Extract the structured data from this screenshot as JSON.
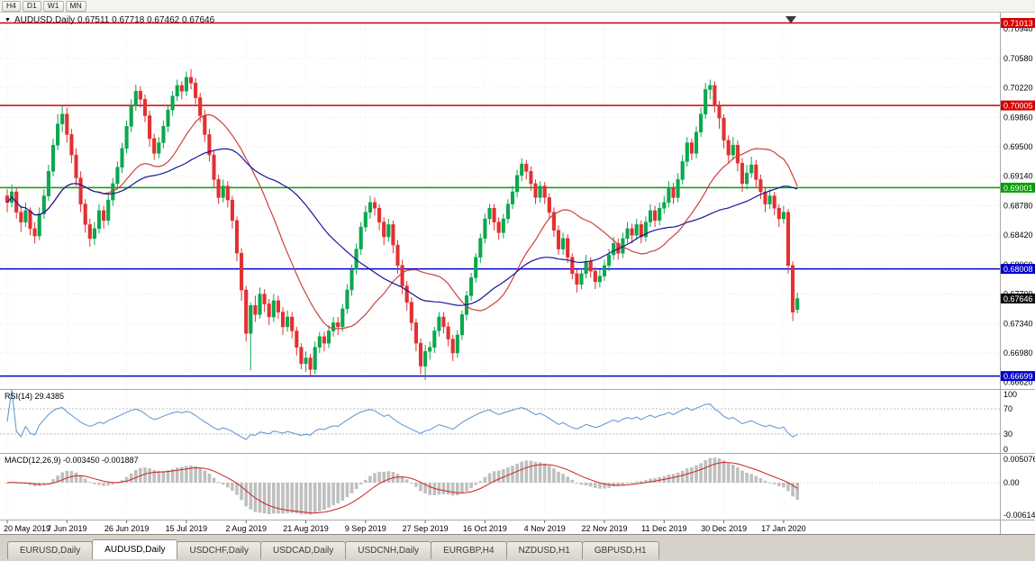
{
  "toolbar": {
    "buttons": [
      "H4",
      "D1",
      "W1",
      "MN"
    ]
  },
  "chart": {
    "marker": "▼",
    "title": "AUDUSD,Daily 0.67511 0.67718 0.67462 0.67646"
  },
  "colors": {
    "bull": "#0ca74f",
    "bear": "#e33030",
    "ma_fast": "#cc4040",
    "ma_slow": "#16169a",
    "rsi": "#5a93d4",
    "macd_signal": "#cc2222",
    "macd_bars": "#bfbfbf",
    "grid": "#e3e3e3",
    "level_red": "#d40000",
    "level_green": "#00a000",
    "level_blue": "#0000cc",
    "current_price_bg": "#101010"
  },
  "price_labels": [
    {
      "value": "0.71013",
      "color": "#d40000",
      "line": true
    },
    {
      "value": "0.70005",
      "color": "#d40000",
      "line": true
    },
    {
      "value": "0.69001",
      "color": "#00a000",
      "line": true
    },
    {
      "value": "0.68008",
      "color": "#0000cc",
      "line": true
    },
    {
      "value": "0.67646",
      "color": "#101010",
      "line": false
    },
    {
      "value": "0.66699",
      "color": "#0000cc",
      "line": true
    }
  ],
  "indicators": {
    "rsi": {
      "label": "RSI(14) 29.4385",
      "period": 14,
      "current": "29.4385",
      "axis_labels": [
        "100",
        "70",
        "30",
        "0"
      ],
      "levels": [
        70,
        30
      ]
    },
    "macd": {
      "label": "MACD(12,26,9) -0.003450 -0.001887",
      "params": "12,26,9",
      "main": "-0.003450",
      "signal": "-0.001887",
      "axis_labels": [
        "0.005076",
        "0.00",
        "-0.006146"
      ]
    }
  },
  "tabs": [
    {
      "label": "EURUSD,Daily",
      "active": false
    },
    {
      "label": "AUDUSD,Daily",
      "active": true
    },
    {
      "label": "USDCHF,Daily",
      "active": false
    },
    {
      "label": "USDCAD,Daily",
      "active": false
    },
    {
      "label": "USDCNH,Daily",
      "active": false
    },
    {
      "label": "EURGBP,H4",
      "active": false
    },
    {
      "label": "NZDUSD,H1",
      "active": false
    },
    {
      "label": "GBPUSD,H1",
      "active": false
    }
  ],
  "chart_data": {
    "type": "candlestick",
    "symbol": "AUDUSD",
    "timeframe": "Daily",
    "ohlc_current": {
      "open": "0.67511",
      "high": "0.67718",
      "low": "0.67462",
      "close": "0.67646"
    },
    "ylim": [
      0.6654,
      0.7114
    ],
    "y_ticks": [
      "0.70940",
      "0.70580",
      "0.70220",
      "0.69860",
      "0.69500",
      "0.69140",
      "0.68780",
      "0.68420",
      "0.68060",
      "0.67700",
      "0.67340",
      "0.66980",
      "0.66620"
    ],
    "x_tick_labels": [
      "20 May 2019",
      "7 Jun 2019",
      "26 Jun 2019",
      "15 Jul 2019",
      "2 Aug 2019",
      "21 Aug 2019",
      "9 Sep 2019",
      "27 Sep 2019",
      "16 Oct 2019",
      "4 Nov 2019",
      "22 Nov 2019",
      "11 Dec 2019",
      "30 Dec 2019",
      "17 Jan 2020"
    ],
    "candles_per_tick": 13,
    "overlays": {
      "ma_fast_period": 20,
      "ma_slow_period": 40
    },
    "candles": [
      [
        0.689,
        0.6898,
        0.687,
        0.6882
      ],
      [
        0.6882,
        0.6904,
        0.6876,
        0.6895
      ],
      [
        0.6895,
        0.69,
        0.6862,
        0.687
      ],
      [
        0.687,
        0.6878,
        0.6846,
        0.6858
      ],
      [
        0.6858,
        0.6882,
        0.6852,
        0.6872
      ],
      [
        0.6872,
        0.6876,
        0.6842,
        0.685
      ],
      [
        0.685,
        0.6858,
        0.6832,
        0.6841
      ],
      [
        0.6841,
        0.6876,
        0.6836,
        0.6868
      ],
      [
        0.6868,
        0.6898,
        0.6862,
        0.689
      ],
      [
        0.689,
        0.6928,
        0.6884,
        0.692
      ],
      [
        0.692,
        0.696,
        0.6914,
        0.6952
      ],
      [
        0.6952,
        0.699,
        0.6946,
        0.6978
      ],
      [
        0.6978,
        0.7,
        0.6968,
        0.699
      ],
      [
        0.699,
        0.6998,
        0.6955,
        0.6965
      ],
      [
        0.6965,
        0.6972,
        0.693,
        0.694
      ],
      [
        0.694,
        0.6948,
        0.6902,
        0.6912
      ],
      [
        0.6912,
        0.692,
        0.687,
        0.688
      ],
      [
        0.688,
        0.6886,
        0.6845,
        0.6855
      ],
      [
        0.6855,
        0.6862,
        0.6828,
        0.6838
      ],
      [
        0.6838,
        0.6858,
        0.683,
        0.685
      ],
      [
        0.685,
        0.688,
        0.6844,
        0.6872
      ],
      [
        0.6872,
        0.6878,
        0.685,
        0.686
      ],
      [
        0.686,
        0.6892,
        0.6854,
        0.6885
      ],
      [
        0.6885,
        0.6912,
        0.6878,
        0.6905
      ],
      [
        0.6905,
        0.6932,
        0.6898,
        0.6925
      ],
      [
        0.6925,
        0.6955,
        0.6918,
        0.6948
      ],
      [
        0.6948,
        0.6982,
        0.6942,
        0.6975
      ],
      [
        0.6975,
        0.7008,
        0.6968,
        0.7
      ],
      [
        0.7,
        0.7026,
        0.6994,
        0.7018
      ],
      [
        0.7018,
        0.7024,
        0.6998,
        0.7008
      ],
      [
        0.7008,
        0.7014,
        0.698,
        0.6988
      ],
      [
        0.6988,
        0.6994,
        0.695,
        0.696
      ],
      [
        0.696,
        0.6966,
        0.6934,
        0.6942
      ],
      [
        0.6942,
        0.6962,
        0.6936,
        0.6955
      ],
      [
        0.6955,
        0.6982,
        0.6948,
        0.6975
      ],
      [
        0.6975,
        0.7,
        0.6968,
        0.6995
      ],
      [
        0.6995,
        0.7018,
        0.6988,
        0.7012
      ],
      [
        0.7012,
        0.7032,
        0.7006,
        0.7025
      ],
      [
        0.7025,
        0.703,
        0.7008,
        0.7018
      ],
      [
        0.7018,
        0.7042,
        0.7012,
        0.7035
      ],
      [
        0.7035,
        0.7045,
        0.702,
        0.7028
      ],
      [
        0.7028,
        0.7034,
        0.7002,
        0.701
      ],
      [
        0.701,
        0.7016,
        0.698,
        0.6988
      ],
      [
        0.6988,
        0.6995,
        0.6956,
        0.6965
      ],
      [
        0.6965,
        0.6972,
        0.6932,
        0.694
      ],
      [
        0.694,
        0.6946,
        0.69,
        0.691
      ],
      [
        0.691,
        0.6916,
        0.688,
        0.6888
      ],
      [
        0.6888,
        0.691,
        0.6882,
        0.6902
      ],
      [
        0.6902,
        0.6908,
        0.6876,
        0.6885
      ],
      [
        0.6885,
        0.689,
        0.685,
        0.686
      ],
      [
        0.686,
        0.6865,
        0.681,
        0.682
      ],
      [
        0.682,
        0.6826,
        0.6762,
        0.6775
      ],
      [
        0.6775,
        0.678,
        0.6712,
        0.6722
      ],
      [
        0.6722,
        0.676,
        0.6677,
        0.6756
      ],
      [
        0.6756,
        0.6768,
        0.6736,
        0.6745
      ],
      [
        0.6745,
        0.6778,
        0.674,
        0.677
      ],
      [
        0.677,
        0.6776,
        0.6748,
        0.6758
      ],
      [
        0.6758,
        0.6764,
        0.6732,
        0.6742
      ],
      [
        0.6742,
        0.677,
        0.6736,
        0.6762
      ],
      [
        0.6762,
        0.6768,
        0.674,
        0.6748
      ],
      [
        0.6748,
        0.6754,
        0.672,
        0.673
      ],
      [
        0.673,
        0.675,
        0.6724,
        0.6742
      ],
      [
        0.6742,
        0.6748,
        0.6716,
        0.6725
      ],
      [
        0.6725,
        0.673,
        0.6695,
        0.6705
      ],
      [
        0.6705,
        0.671,
        0.6678,
        0.6685
      ],
      [
        0.6685,
        0.67,
        0.6675,
        0.6692
      ],
      [
        0.6692,
        0.6697,
        0.667,
        0.6678
      ],
      [
        0.6678,
        0.6712,
        0.6672,
        0.6705
      ],
      [
        0.6705,
        0.6724,
        0.6698,
        0.6718
      ],
      [
        0.6718,
        0.6724,
        0.67,
        0.671
      ],
      [
        0.671,
        0.6732,
        0.6704,
        0.6725
      ],
      [
        0.6725,
        0.6742,
        0.6718,
        0.6735
      ],
      [
        0.6735,
        0.6742,
        0.672,
        0.673
      ],
      [
        0.673,
        0.6758,
        0.6724,
        0.6752
      ],
      [
        0.6752,
        0.6782,
        0.6746,
        0.6775
      ],
      [
        0.6775,
        0.6806,
        0.6768,
        0.68
      ],
      [
        0.68,
        0.6832,
        0.6794,
        0.6825
      ],
      [
        0.6825,
        0.6858,
        0.6818,
        0.6852
      ],
      [
        0.6852,
        0.6878,
        0.6846,
        0.687
      ],
      [
        0.687,
        0.689,
        0.6862,
        0.6882
      ],
      [
        0.6882,
        0.6888,
        0.6866,
        0.6875
      ],
      [
        0.6875,
        0.688,
        0.6848,
        0.6858
      ],
      [
        0.6858,
        0.6864,
        0.683,
        0.684
      ],
      [
        0.684,
        0.6862,
        0.6834,
        0.6855
      ],
      [
        0.6855,
        0.686,
        0.682,
        0.683
      ],
      [
        0.683,
        0.6836,
        0.6795,
        0.6805
      ],
      [
        0.6805,
        0.6812,
        0.677,
        0.678
      ],
      [
        0.678,
        0.6786,
        0.675,
        0.676
      ],
      [
        0.676,
        0.6766,
        0.6725,
        0.6735
      ],
      [
        0.6735,
        0.674,
        0.67,
        0.671
      ],
      [
        0.671,
        0.6716,
        0.6672,
        0.6682
      ],
      [
        0.6682,
        0.6708,
        0.6665,
        0.67
      ],
      [
        0.67,
        0.6712,
        0.669,
        0.6705
      ],
      [
        0.6705,
        0.673,
        0.6698,
        0.6725
      ],
      [
        0.6725,
        0.6748,
        0.6718,
        0.6742
      ],
      [
        0.6742,
        0.6748,
        0.6722,
        0.673
      ],
      [
        0.673,
        0.6736,
        0.6706,
        0.6715
      ],
      [
        0.6715,
        0.672,
        0.6688,
        0.6698
      ],
      [
        0.6698,
        0.6726,
        0.6692,
        0.672
      ],
      [
        0.672,
        0.675,
        0.6714,
        0.6745
      ],
      [
        0.6745,
        0.6774,
        0.6738,
        0.6768
      ],
      [
        0.6768,
        0.6796,
        0.6762,
        0.679
      ],
      [
        0.679,
        0.682,
        0.6784,
        0.6815
      ],
      [
        0.6815,
        0.6844,
        0.6808,
        0.6838
      ],
      [
        0.6838,
        0.6868,
        0.6832,
        0.6862
      ],
      [
        0.6862,
        0.688,
        0.6855,
        0.6875
      ],
      [
        0.6875,
        0.688,
        0.6848,
        0.6858
      ],
      [
        0.6858,
        0.6864,
        0.6836,
        0.6845
      ],
      [
        0.6845,
        0.6868,
        0.6838,
        0.6862
      ],
      [
        0.6862,
        0.6886,
        0.6856,
        0.688
      ],
      [
        0.688,
        0.6902,
        0.6874,
        0.6895
      ],
      [
        0.6895,
        0.6922,
        0.6888,
        0.6915
      ],
      [
        0.6915,
        0.6936,
        0.6908,
        0.6929
      ],
      [
        0.6929,
        0.6934,
        0.691,
        0.692
      ],
      [
        0.692,
        0.6926,
        0.6896,
        0.6905
      ],
      [
        0.6905,
        0.691,
        0.688,
        0.6888
      ],
      [
        0.6888,
        0.6908,
        0.6882,
        0.6902
      ],
      [
        0.6902,
        0.6907,
        0.688,
        0.6888
      ],
      [
        0.6888,
        0.6893,
        0.6862,
        0.687
      ],
      [
        0.687,
        0.6876,
        0.684,
        0.6848
      ],
      [
        0.6848,
        0.6854,
        0.6818,
        0.6825
      ],
      [
        0.6825,
        0.6845,
        0.6818,
        0.6838
      ],
      [
        0.6838,
        0.6843,
        0.6808,
        0.6815
      ],
      [
        0.6815,
        0.682,
        0.6788,
        0.6795
      ],
      [
        0.6795,
        0.68,
        0.6772,
        0.6782
      ],
      [
        0.6782,
        0.6802,
        0.6776,
        0.6795
      ],
      [
        0.6795,
        0.6818,
        0.6789,
        0.681
      ],
      [
        0.681,
        0.6815,
        0.679,
        0.6798
      ],
      [
        0.6798,
        0.6803,
        0.6776,
        0.6785
      ],
      [
        0.6785,
        0.68,
        0.6778,
        0.6792
      ],
      [
        0.6792,
        0.6812,
        0.6786,
        0.6805
      ],
      [
        0.6805,
        0.6825,
        0.6798,
        0.6818
      ],
      [
        0.6818,
        0.684,
        0.6812,
        0.6832
      ],
      [
        0.6832,
        0.6838,
        0.6812,
        0.682
      ],
      [
        0.682,
        0.6845,
        0.6814,
        0.6838
      ],
      [
        0.6838,
        0.6858,
        0.6832,
        0.685
      ],
      [
        0.685,
        0.6856,
        0.6832,
        0.6842
      ],
      [
        0.6842,
        0.6862,
        0.6836,
        0.6855
      ],
      [
        0.6855,
        0.686,
        0.6832,
        0.684
      ],
      [
        0.684,
        0.6865,
        0.6834,
        0.6858
      ],
      [
        0.6858,
        0.688,
        0.6852,
        0.6872
      ],
      [
        0.6872,
        0.6878,
        0.6852,
        0.686
      ],
      [
        0.686,
        0.6882,
        0.6854,
        0.6875
      ],
      [
        0.6875,
        0.689,
        0.6868,
        0.6882
      ],
      [
        0.6882,
        0.6908,
        0.6876,
        0.69
      ],
      [
        0.69,
        0.6906,
        0.688,
        0.6888
      ],
      [
        0.6888,
        0.6918,
        0.6882,
        0.691
      ],
      [
        0.691,
        0.694,
        0.6904,
        0.6932
      ],
      [
        0.6932,
        0.6962,
        0.6926,
        0.6955
      ],
      [
        0.6955,
        0.696,
        0.6934,
        0.6942
      ],
      [
        0.6942,
        0.6975,
        0.6936,
        0.6968
      ],
      [
        0.6968,
        0.6998,
        0.6962,
        0.699
      ],
      [
        0.699,
        0.7028,
        0.6984,
        0.702
      ],
      [
        0.702,
        0.7032,
        0.7008,
        0.7025
      ],
      [
        0.7025,
        0.703,
        0.6992,
        0.7
      ],
      [
        0.7,
        0.7006,
        0.6972,
        0.6985
      ],
      [
        0.6985,
        0.699,
        0.6948,
        0.6958
      ],
      [
        0.6958,
        0.6964,
        0.693,
        0.694
      ],
      [
        0.694,
        0.6962,
        0.6934,
        0.6952
      ],
      [
        0.6952,
        0.6958,
        0.692,
        0.693
      ],
      [
        0.693,
        0.6936,
        0.6895,
        0.6905
      ],
      [
        0.6905,
        0.6928,
        0.6898,
        0.6918
      ],
      [
        0.6918,
        0.6938,
        0.6912,
        0.6928
      ],
      [
        0.6928,
        0.6934,
        0.69,
        0.691
      ],
      [
        0.691,
        0.6916,
        0.6886,
        0.6895
      ],
      [
        0.6895,
        0.69,
        0.687,
        0.688
      ],
      [
        0.688,
        0.6898,
        0.6874,
        0.689
      ],
      [
        0.689,
        0.6895,
        0.6866,
        0.6875
      ],
      [
        0.6875,
        0.688,
        0.6852,
        0.6862
      ],
      [
        0.6862,
        0.6878,
        0.6856,
        0.687
      ],
      [
        0.687,
        0.6874,
        0.6795,
        0.6805
      ],
      [
        0.6805,
        0.681,
        0.6737,
        0.6748
      ],
      [
        0.67511,
        0.67718,
        0.67462,
        0.67646
      ]
    ]
  }
}
